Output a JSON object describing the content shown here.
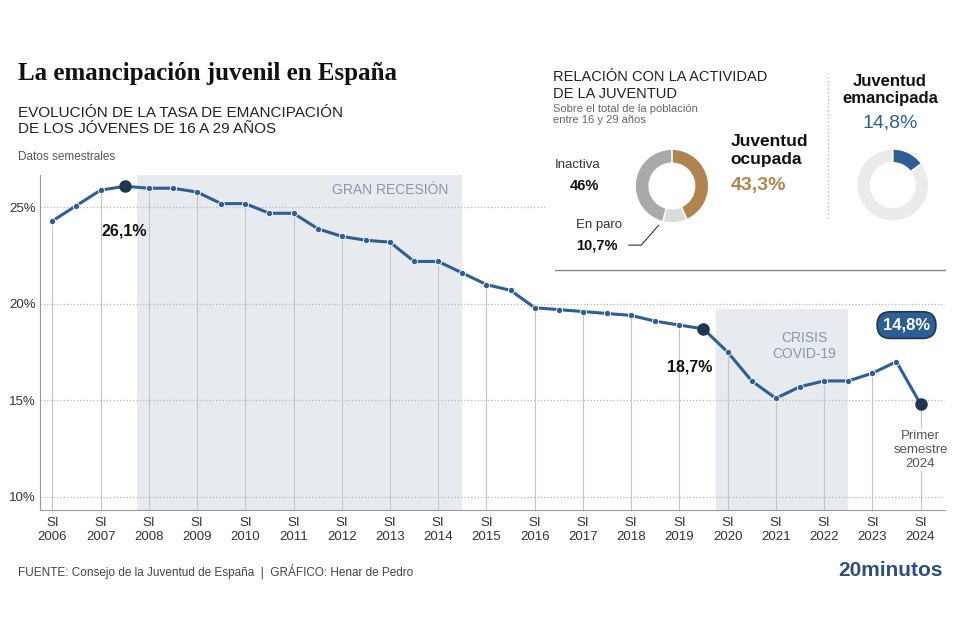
{
  "chart_data": [
    {
      "type": "line",
      "title": "La emancipación juvenil en España",
      "subtitle": "EVOLUCIÓN DE LA TASA DE EMANCIPACIÓN\nDE LOS JÓVENES DE 16 A 29 AÑOS",
      "note": "Datos semestrales",
      "source": "FUENTE: Consejo de la Juventud de España  |  GRÁFICO: Henar de Pedro",
      "brand": "20minutos",
      "categories": [
        "SI\n2006",
        null,
        "SI\n2007",
        null,
        "SI\n2008",
        null,
        "SI\n2009",
        null,
        "SI\n2010",
        null,
        "SI\n2011",
        null,
        "SI\n2012",
        null,
        "SI\n2013",
        null,
        "SI\n2014",
        null,
        "SI\n2015",
        null,
        "SI\n2016",
        null,
        "SI\n2017",
        null,
        "SI\n2018",
        null,
        "SI\n2019",
        null,
        "SI\n2020",
        null,
        "SI\n2021",
        null,
        "SI\n2022",
        null,
        "SI\n2023",
        null,
        "SI\n2024"
      ],
      "values": [
        24.3,
        25.1,
        25.9,
        26.1,
        26.0,
        26.0,
        25.8,
        25.2,
        25.2,
        24.7,
        24.7,
        23.9,
        23.5,
        23.3,
        23.2,
        22.2,
        22.2,
        21.6,
        21.0,
        20.7,
        19.8,
        19.7,
        19.6,
        19.5,
        19.4,
        19.1,
        18.9,
        18.7,
        17.5,
        16.0,
        15.1,
        15.7,
        16.0,
        16.0,
        16.4,
        17.0,
        14.8
      ],
      "color": "#2d5f95",
      "marker": "circle",
      "line_style": "solid",
      "ylim": [
        9.3,
        26.7
      ],
      "yticks": [
        {
          "value": 10,
          "label": "10%"
        },
        {
          "value": 15,
          "label": "15%"
        },
        {
          "value": 20,
          "label": "20%"
        },
        {
          "value": 25,
          "label": "25%"
        }
      ],
      "grid": true,
      "periods": [
        {
          "label": "GRAN RECESIÓN",
          "start": 3.5,
          "end": 17
        },
        {
          "label": "CRISIS\nCOVID-19",
          "start": 27.5,
          "end": 33
        }
      ],
      "annotations": [
        {
          "value": 26.1,
          "text": "26,1%"
        },
        {
          "value": 18.7,
          "text": "18,7%"
        },
        {
          "value": 14.8,
          "text": "14,8%",
          "note": "Primer\nsemestre\n2024"
        }
      ]
    },
    {
      "type": "pie",
      "title": "RELACIÓN CON LA ACTIVIDAD\nDE LA JUVENTUD",
      "subtitle": "Sobre el total de la población\nentre 16 y 29 años",
      "categories": [
        "Juventud\nocupada",
        "En paro",
        "Inactiva"
      ],
      "values": [
        43.3,
        10.7,
        46
      ],
      "value_labels": [
        "43,3%",
        "10,7%",
        "46%"
      ],
      "colors": [
        "#b0844f",
        "#dcdcdc",
        "#a9a9a9"
      ]
    },
    {
      "type": "pie",
      "categories": [
        "Juventud\nemancipada",
        null
      ],
      "values": [
        14.8,
        85.2
      ],
      "value_labels": [
        "14,8%",
        null
      ],
      "colors": [
        "#2d5f95",
        "#ebebeb"
      ]
    }
  ]
}
